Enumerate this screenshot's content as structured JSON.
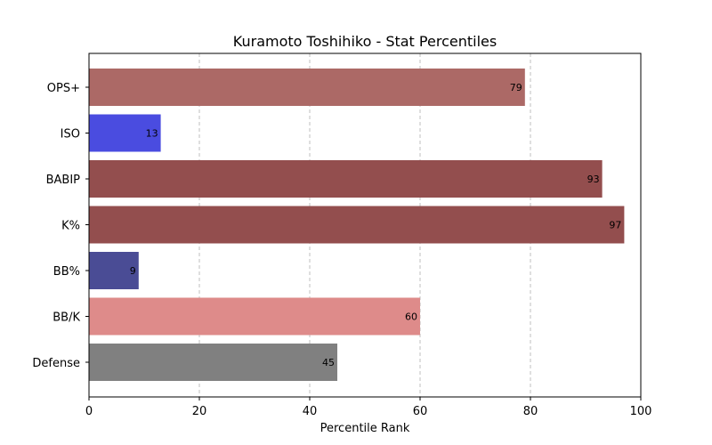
{
  "chart_data": {
    "type": "bar",
    "orientation": "horizontal",
    "title": "Kuramoto Toshihiko - Stat Percentiles",
    "xlabel": "Percentile Rank",
    "ylabel": "",
    "xlim": [
      0,
      100
    ],
    "xticks": [
      0,
      20,
      40,
      60,
      80,
      100
    ],
    "grid": "x-dashed",
    "categories": [
      "OPS+",
      "ISO",
      "BABIP",
      "K%",
      "BB%",
      "BB/K",
      "Defense"
    ],
    "values": [
      79,
      13,
      93,
      97,
      9,
      60,
      45
    ],
    "colors": [
      "#ac6966",
      "#4a4ce0",
      "#934e4e",
      "#934e4e",
      "#4a4c95",
      "#de8b8a",
      "#808080"
    ]
  }
}
